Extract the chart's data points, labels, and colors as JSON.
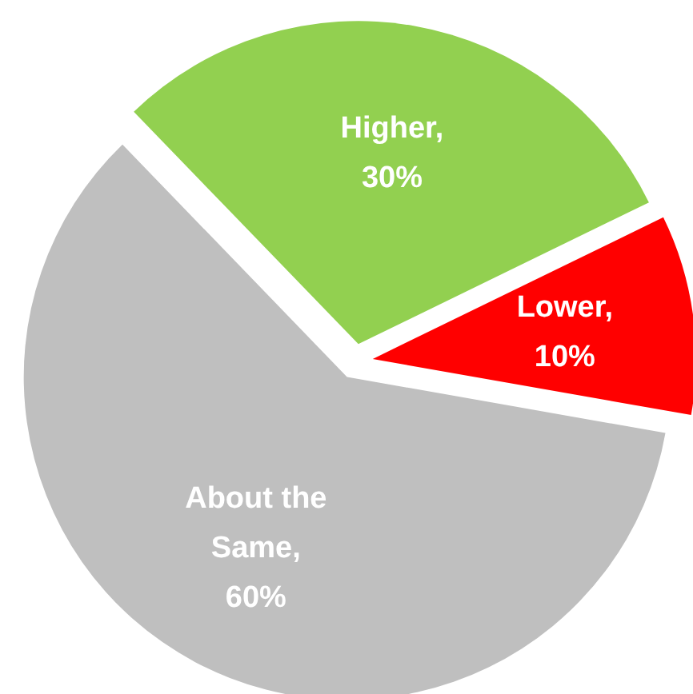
{
  "chart_data": {
    "type": "pie",
    "categories": [
      "Higher",
      "Lower",
      "About the Same"
    ],
    "values": [
      30,
      10,
      60
    ],
    "colors": [
      "#92d050",
      "#ff0000",
      "#bfbfbf"
    ],
    "value_labels": [
      ", 30%",
      ", 10%",
      ", 60%"
    ]
  }
}
